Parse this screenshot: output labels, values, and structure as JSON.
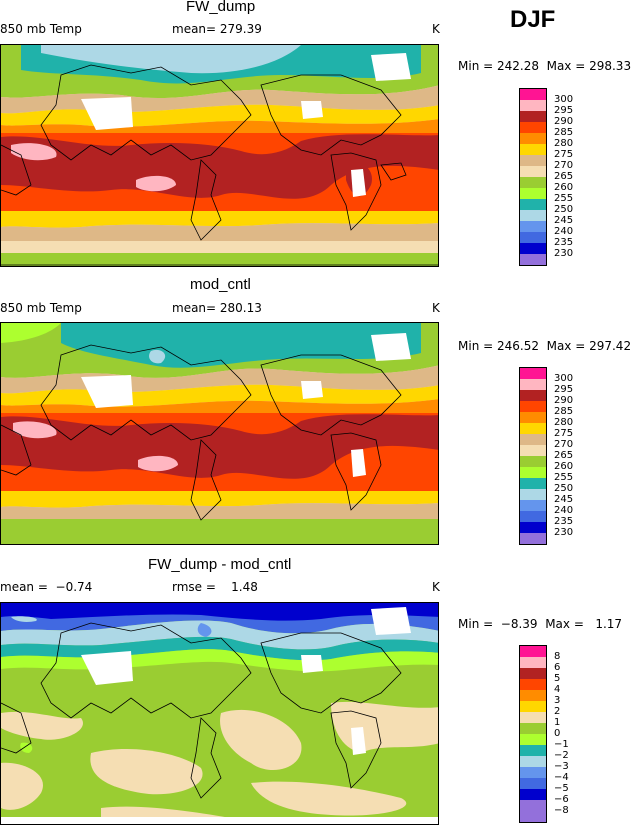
{
  "season": "DJF",
  "panels": [
    {
      "title": "FW_dump",
      "left_label": "850 mb Temp",
      "center_label": "mean= 279.39",
      "units": "K",
      "minmax": "Min = 242.28  Max = 298.33",
      "legend_ticks": [
        "300",
        "295",
        "290",
        "285",
        "280",
        "275",
        "270",
        "265",
        "260",
        "255",
        "250",
        "245",
        "240",
        "235",
        "230"
      ]
    },
    {
      "title": "mod_cntl",
      "left_label": "850 mb Temp",
      "center_label": "mean= 280.13",
      "units": "K",
      "minmax": "Min = 246.52  Max = 297.42",
      "legend_ticks": [
        "300",
        "295",
        "290",
        "285",
        "280",
        "275",
        "270",
        "265",
        "260",
        "255",
        "250",
        "245",
        "240",
        "235",
        "230"
      ]
    },
    {
      "title": "FW_dump - mod_cntl",
      "left_label": "mean =  −0.74",
      "center_label": "rmse =    1.48",
      "units": "K",
      "minmax": "Min =  −8.39  Max =   1.17",
      "legend_ticks": [
        "8",
        "6",
        "5",
        "4",
        "3",
        "2",
        "1",
        "0",
        "−1",
        "−2",
        "−3",
        "−4",
        "−5",
        "−6",
        "−8"
      ]
    }
  ],
  "colors": {
    "abs_scale": [
      "#ff1493",
      "#ffb6c1",
      "#b22222",
      "#ff4500",
      "#ff8c00",
      "#ffd700",
      "#ffff66",
      "#deb887",
      "#f5deb3",
      "#9acd32",
      "#adff2f",
      "#20b2aa",
      "#add8e6",
      "#6495ed",
      "#4169e1",
      "#0000cd",
      "#9370db"
    ],
    "diff_scale": [
      "#ff1493",
      "#ffb6c1",
      "#b22222",
      "#ff4500",
      "#ff8c00",
      "#ffd700",
      "#ffff66",
      "#f5deb3",
      "#9acd32",
      "#adff2f",
      "#20b2aa",
      "#add8e6",
      "#6495ed",
      "#4169e1",
      "#0000cd",
      "#9370db"
    ]
  }
}
